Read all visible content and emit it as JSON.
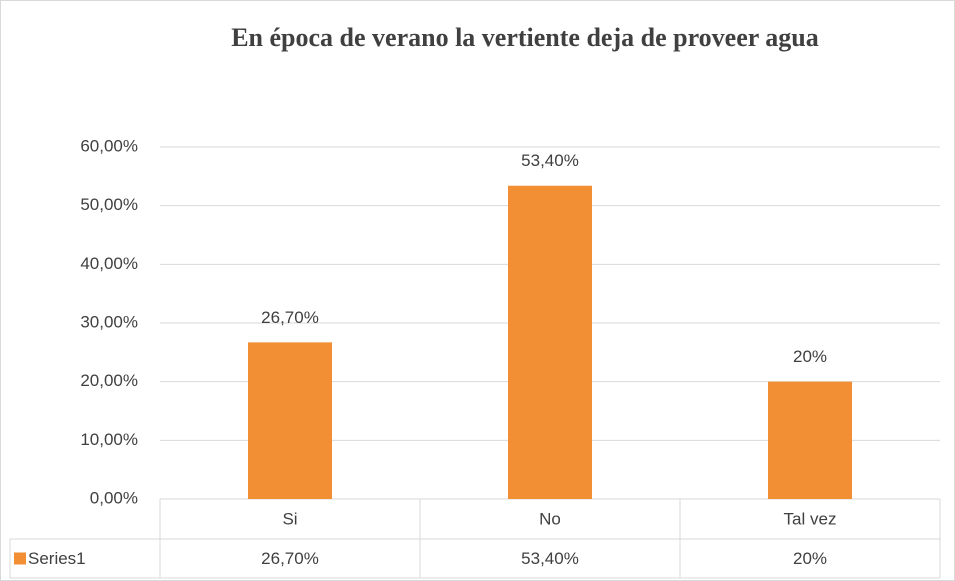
{
  "chart_data": {
    "type": "bar",
    "title": "En época de verano la vertiente deja de proveer agua",
    "categories": [
      "Si",
      "No",
      "Tal vez"
    ],
    "series": [
      {
        "name": "Series1",
        "color": "#f28e34",
        "values": [
          26.7,
          53.4,
          20
        ],
        "value_labels": [
          "26,70%",
          "53,40%",
          "20%"
        ]
      }
    ],
    "ylim": [
      0,
      60
    ],
    "yticks": [
      {
        "value": 0,
        "label": "0,00%"
      },
      {
        "value": 10,
        "label": "10,00%"
      },
      {
        "value": 20,
        "label": "20,00%"
      },
      {
        "value": 30,
        "label": "30,00%"
      },
      {
        "value": 40,
        "label": "40,00%"
      },
      {
        "value": 50,
        "label": "50,00%"
      },
      {
        "value": 60,
        "label": "60,00%"
      }
    ],
    "grid": true
  }
}
